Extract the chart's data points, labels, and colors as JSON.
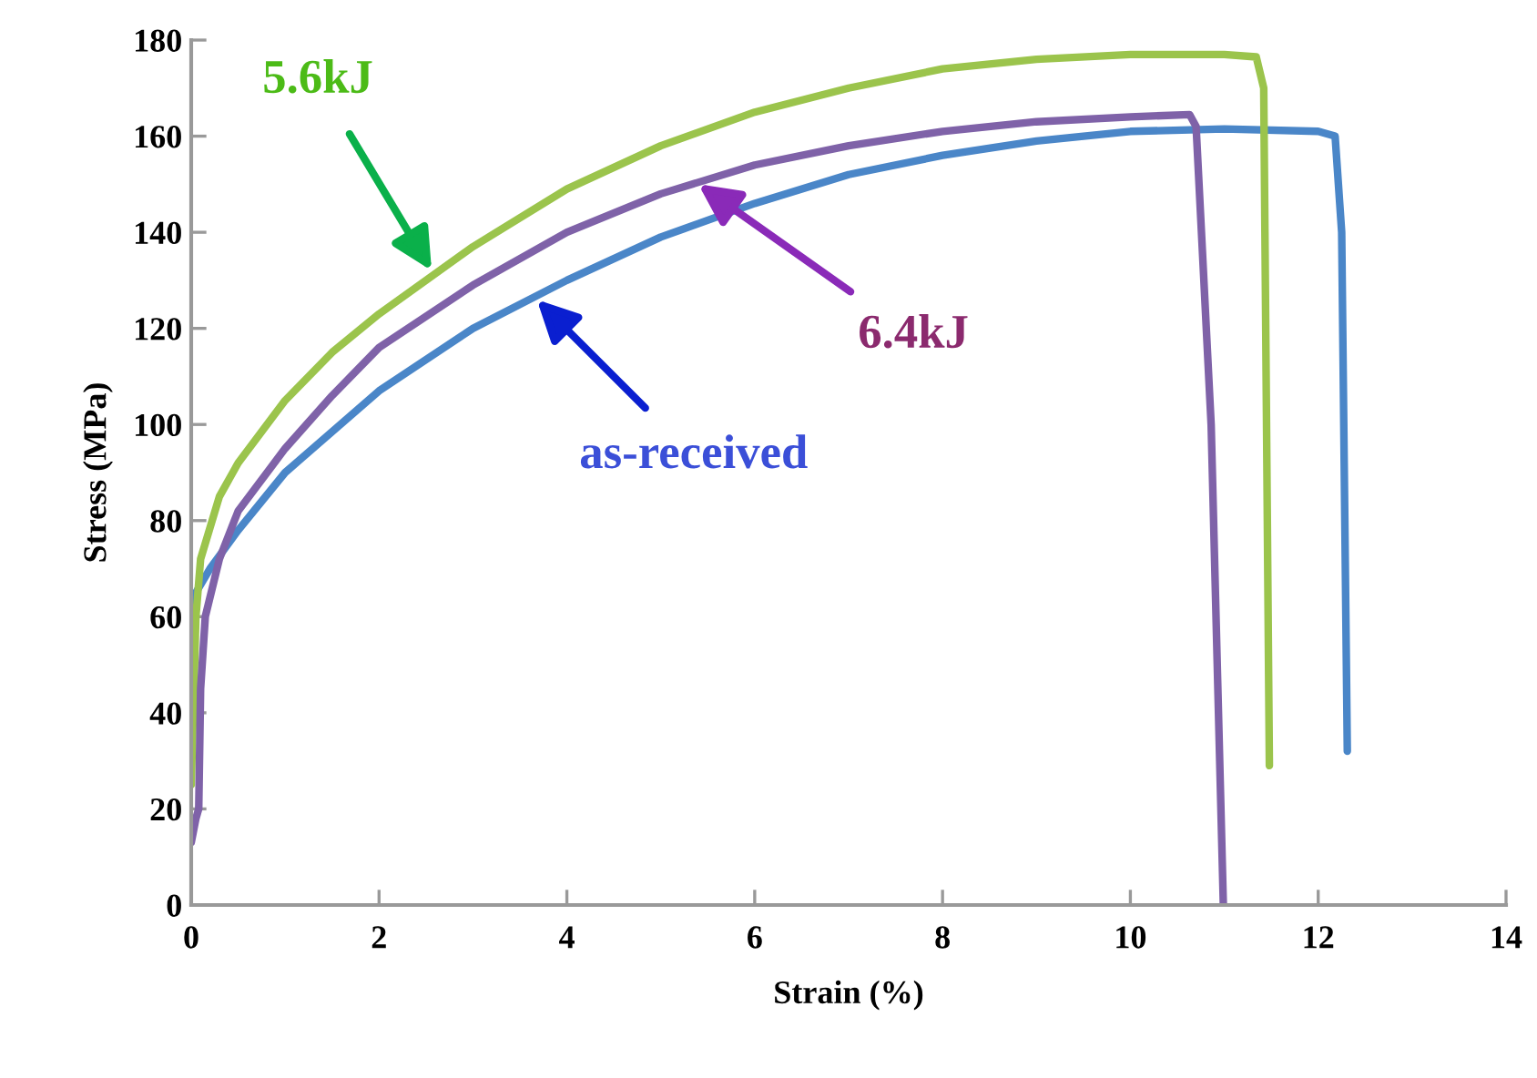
{
  "chart_data": {
    "type": "line",
    "xlabel": "Strain (%)",
    "ylabel": "Stress (MPa)",
    "xlim": [
      0,
      14
    ],
    "ylim": [
      0,
      180
    ],
    "xticks": [
      0,
      2,
      4,
      6,
      8,
      10,
      12,
      14
    ],
    "yticks": [
      0,
      20,
      40,
      60,
      80,
      100,
      120,
      140,
      160,
      180
    ],
    "grid": false,
    "marker": "none",
    "line_style": "solid",
    "series": [
      {
        "color": "#4a86c8",
        "x": [
          0,
          0.05,
          0.2,
          0.5,
          1,
          2,
          3,
          4,
          5,
          6,
          7,
          8,
          9,
          10,
          11,
          12,
          12.18,
          12.25,
          12.31
        ],
        "values": [
          55,
          65,
          70,
          78,
          90,
          107,
          120,
          130,
          139,
          146,
          152,
          156,
          159,
          161,
          161.5,
          161,
          160,
          140,
          32
        ]
      },
      {
        "color": "#9bc44c",
        "x": [
          0,
          0.05,
          0.1,
          0.3,
          0.5,
          1,
          1.5,
          2,
          2.5,
          3,
          4,
          5,
          6,
          7,
          8,
          9,
          10,
          11,
          11.34,
          11.42,
          11.48
        ],
        "values": [
          25,
          60,
          72,
          85,
          92,
          105,
          115,
          123,
          130,
          137,
          149,
          158,
          165,
          170,
          174,
          176,
          177,
          177,
          176.5,
          170,
          29
        ]
      },
      {
        "color": "#7f62a8",
        "x": [
          0,
          0.05,
          0.08,
          0.1,
          0.15,
          0.3,
          0.5,
          1,
          1.5,
          2,
          3,
          4,
          5,
          6,
          7,
          8,
          9,
          10,
          10.63,
          10.7,
          10.86,
          10.99
        ],
        "values": [
          13,
          18,
          20,
          45,
          60,
          72,
          82,
          95,
          106,
          116,
          129,
          140,
          148,
          154,
          158,
          161,
          163,
          164,
          164.5,
          162,
          100,
          0
        ]
      }
    ],
    "annotations": [
      {
        "text": "as-received",
        "x": 3.68,
        "y": 126
      },
      {
        "text": "5.6kJ",
        "x": 2.56,
        "y": 132
      },
      {
        "text": "6.4kJ",
        "x": 5.4,
        "y": 150
      }
    ]
  }
}
